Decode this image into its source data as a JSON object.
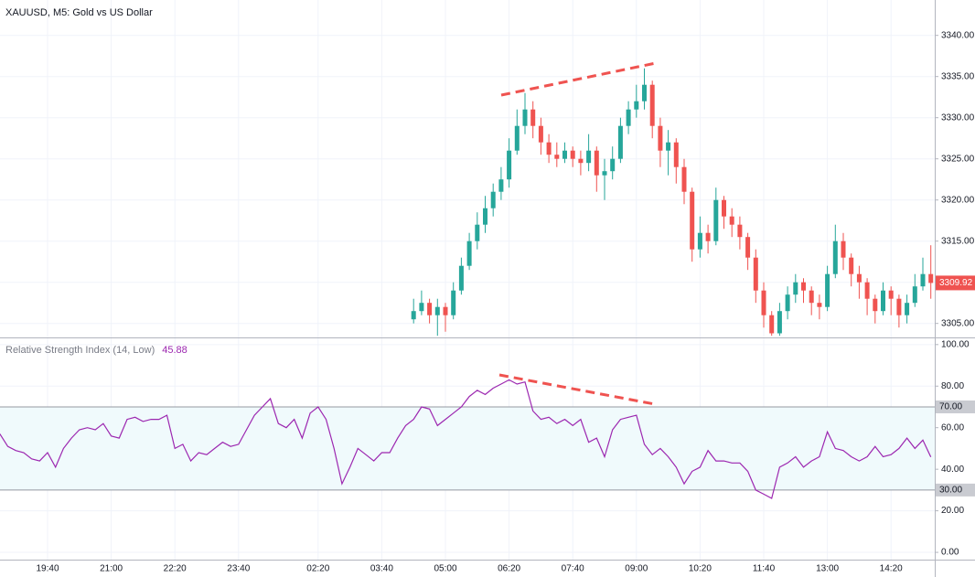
{
  "chart_data": [
    {
      "type": "candlestick",
      "title": "XAUUSD, M5: Gold vs US Dollar",
      "up_color": "#26a69a",
      "down_color": "#ef5350",
      "open": [
        null,
        null,
        null,
        null,
        null,
        null,
        null,
        null,
        null,
        null,
        null,
        null,
        null,
        null,
        null,
        null,
        null,
        null,
        null,
        null,
        null,
        null,
        null,
        null,
        null,
        null,
        null,
        null,
        null,
        null,
        null,
        null,
        null,
        null,
        null,
        null,
        null,
        null,
        null,
        null,
        null,
        null,
        null,
        null,
        null,
        null,
        null,
        null,
        null,
        null,
        null,
        null,
        3305.5,
        3306.5,
        3307.5,
        3306,
        3307,
        3306,
        3309,
        3312,
        3315,
        3317,
        3319,
        3321,
        3322.5,
        3326,
        3329,
        3331,
        3329,
        3327,
        3325.5,
        3325,
        3326,
        3325,
        3324.5,
        3326,
        3323,
        3323.5,
        3325,
        3329,
        3331,
        3332,
        3334,
        3329,
        3326,
        3327,
        3324,
        3321,
        3314,
        3316,
        3315,
        3320,
        3318,
        3317,
        3315.5,
        3313,
        3309,
        3306,
        3303.8,
        3306.5,
        3308.5,
        3310,
        3309,
        3307.5,
        3307,
        3311,
        3315,
        3313,
        3311,
        3310,
        3308,
        3306.5,
        3309,
        3308,
        3306,
        3307.5,
        3309.5,
        3311
      ],
      "high": [
        null,
        null,
        null,
        null,
        null,
        null,
        null,
        null,
        null,
        null,
        null,
        null,
        null,
        null,
        null,
        null,
        null,
        null,
        null,
        null,
        null,
        null,
        null,
        null,
        null,
        null,
        null,
        null,
        null,
        null,
        null,
        null,
        null,
        null,
        null,
        null,
        null,
        null,
        null,
        null,
        null,
        null,
        null,
        null,
        null,
        null,
        null,
        null,
        null,
        null,
        null,
        null,
        3308,
        3309,
        3308,
        3308,
        3307.5,
        3310,
        3313,
        3316,
        3318.5,
        3320.5,
        3322,
        3324,
        3327.5,
        3331,
        3333,
        3332,
        3330,
        3328,
        3327,
        3327,
        3326.5,
        3326,
        3328,
        3326.5,
        3325,
        3326.5,
        3330,
        3332,
        3334,
        3336,
        3334.5,
        3330,
        3328.5,
        3327.5,
        3325,
        3321.5,
        3318,
        3317,
        3321.5,
        3320.5,
        3319,
        3318,
        3316,
        3314,
        3310,
        3306.5,
        3307.5,
        3309.5,
        3311,
        3310.5,
        3309.5,
        3308.5,
        3312,
        3317,
        3316,
        3313.5,
        3312,
        3310.5,
        3308.5,
        3310,
        3309.5,
        3308.5,
        3308.5,
        3311,
        3313,
        3314.5
      ],
      "low": [
        null,
        null,
        null,
        null,
        null,
        null,
        null,
        null,
        null,
        null,
        null,
        null,
        null,
        null,
        null,
        null,
        null,
        null,
        null,
        null,
        null,
        null,
        null,
        null,
        null,
        null,
        null,
        null,
        null,
        null,
        null,
        null,
        null,
        null,
        null,
        null,
        null,
        null,
        null,
        null,
        null,
        null,
        null,
        null,
        null,
        null,
        null,
        null,
        null,
        null,
        null,
        null,
        3305,
        3306,
        3305,
        3303.5,
        3304,
        3305.5,
        3308.5,
        3311.5,
        3314,
        3316,
        3318,
        3320,
        3321.5,
        3325.5,
        3328,
        3327.5,
        3325.5,
        3324.5,
        3324,
        3324.5,
        3324,
        3323,
        3323.5,
        3321,
        3320,
        3322.5,
        3324.5,
        3328,
        3330,
        3331,
        3327.5,
        3324,
        3323,
        3322,
        3319.5,
        3312.5,
        3313,
        3313.5,
        3314.5,
        3316.5,
        3315.5,
        3314,
        3311.5,
        3307.5,
        3304.5,
        3303.5,
        3303.5,
        3305.5,
        3307.5,
        3307.5,
        3306,
        3305.5,
        3306.5,
        3310.5,
        3311.5,
        3309.5,
        3308,
        3306,
        3305,
        3306,
        3306,
        3304.5,
        3305,
        3307,
        3309,
        3308
      ],
      "close": [
        null,
        null,
        null,
        null,
        null,
        null,
        null,
        null,
        null,
        null,
        null,
        null,
        null,
        null,
        null,
        null,
        null,
        null,
        null,
        null,
        null,
        null,
        null,
        null,
        null,
        null,
        null,
        null,
        null,
        null,
        null,
        null,
        null,
        null,
        null,
        null,
        null,
        null,
        null,
        null,
        null,
        null,
        null,
        null,
        null,
        null,
        null,
        null,
        null,
        null,
        null,
        null,
        3306.5,
        3307.5,
        3306,
        3307,
        3306,
        3309,
        3312,
        3315,
        3317,
        3319,
        3321,
        3322.5,
        3326,
        3329,
        3331,
        3329,
        3327,
        3325.5,
        3325,
        3326,
        3325,
        3324.5,
        3326,
        3323,
        3323.5,
        3325,
        3329,
        3331,
        3332,
        3334,
        3329,
        3326,
        3327,
        3324,
        3321,
        3314,
        3316,
        3315,
        3320,
        3318,
        3317,
        3315.5,
        3313,
        3309,
        3306,
        3303.8,
        3306.5,
        3308.5,
        3310,
        3309,
        3307.5,
        3307,
        3311,
        3315,
        3313,
        3311,
        3310,
        3308,
        3306.5,
        3309,
        3308,
        3306,
        3307.5,
        3309.5,
        3311,
        3309.92
      ],
      "last_label": "3309.92",
      "ylim": [
        3303.3,
        3344.3
      ],
      "yticks": [
        {
          "value": 3305,
          "label": "3305.00"
        },
        {
          "value": 3310,
          "label": "3310.00"
        },
        {
          "value": 3315,
          "label": "3315.00"
        },
        {
          "value": 3320,
          "label": "3320.00"
        },
        {
          "value": 3325,
          "label": "3325.00"
        },
        {
          "value": 3330,
          "label": "3330.00"
        },
        {
          "value": 3335,
          "label": "3335.00"
        },
        {
          "value": 3340,
          "label": "3340.00"
        }
      ],
      "grid": true
    },
    {
      "type": "line",
      "categories": [
        null,
        null,
        null,
        null,
        null,
        null,
        "19:40",
        null,
        null,
        null,
        null,
        null,
        null,
        null,
        "21:00",
        null,
        null,
        null,
        null,
        null,
        null,
        null,
        "22:20",
        null,
        null,
        null,
        null,
        null,
        null,
        null,
        "23:40",
        null,
        null,
        null,
        null,
        null,
        null,
        null,
        null,
        null,
        "02:20",
        null,
        null,
        null,
        null,
        null,
        null,
        null,
        "03:40",
        null,
        null,
        null,
        null,
        null,
        null,
        null,
        "05:00",
        null,
        null,
        null,
        null,
        null,
        null,
        null,
        "06:20",
        null,
        null,
        null,
        null,
        null,
        null,
        null,
        "07:40",
        null,
        null,
        null,
        null,
        null,
        null,
        null,
        "09:00",
        null,
        null,
        null,
        null,
        null,
        null,
        null,
        "10:20",
        null,
        null,
        null,
        null,
        null,
        null,
        null,
        "11:40",
        null,
        null,
        null,
        null,
        null,
        null,
        null,
        "13:00",
        null,
        null,
        null,
        null,
        null,
        null,
        null,
        "14:20",
        null,
        null,
        null,
        null,
        null
      ],
      "series": [
        {
          "name": "Relative Strength Index (14, Low)",
          "color": "#9c27b0",
          "values": [
            57,
            51,
            49,
            48,
            45,
            44,
            48,
            41,
            50,
            55,
            59,
            60,
            59,
            62,
            56,
            55,
            64,
            65,
            63,
            64,
            64,
            66,
            50,
            52,
            44,
            48,
            47,
            50,
            53,
            51,
            52,
            59,
            66,
            70,
            74,
            62,
            60,
            64,
            55,
            67,
            70,
            64,
            50,
            33,
            41,
            50,
            47,
            44,
            48,
            48,
            55,
            61,
            64,
            70,
            69,
            61,
            64,
            67,
            70,
            75,
            78,
            76,
            79,
            81,
            83,
            81,
            82,
            68,
            64,
            65,
            62,
            64,
            61,
            64,
            53,
            55,
            46,
            59,
            64,
            65,
            66,
            52,
            47,
            50,
            46,
            41,
            33,
            39,
            41,
            49,
            44,
            44,
            43,
            43,
            39,
            30,
            28,
            26,
            41,
            43,
            46,
            41,
            44,
            46,
            58,
            50,
            49,
            46,
            44,
            46,
            51,
            46,
            47,
            50,
            55,
            50,
            54,
            45.88
          ]
        }
      ],
      "levels": [
        {
          "value": 70,
          "label": "70.00"
        },
        {
          "value": 30,
          "label": "30.00"
        }
      ],
      "band_color": "#f0fafc",
      "ylim": [
        -3.5,
        103
      ],
      "yticks": [
        {
          "value": 0,
          "label": "0.00"
        },
        {
          "value": 20,
          "label": "20.00"
        },
        {
          "value": 40,
          "label": "40.00"
        },
        {
          "value": 60,
          "label": "60.00"
        },
        {
          "value": 80,
          "label": "80.00"
        },
        {
          "value": 100,
          "label": "100.00"
        }
      ],
      "grid": true
    }
  ]
}
